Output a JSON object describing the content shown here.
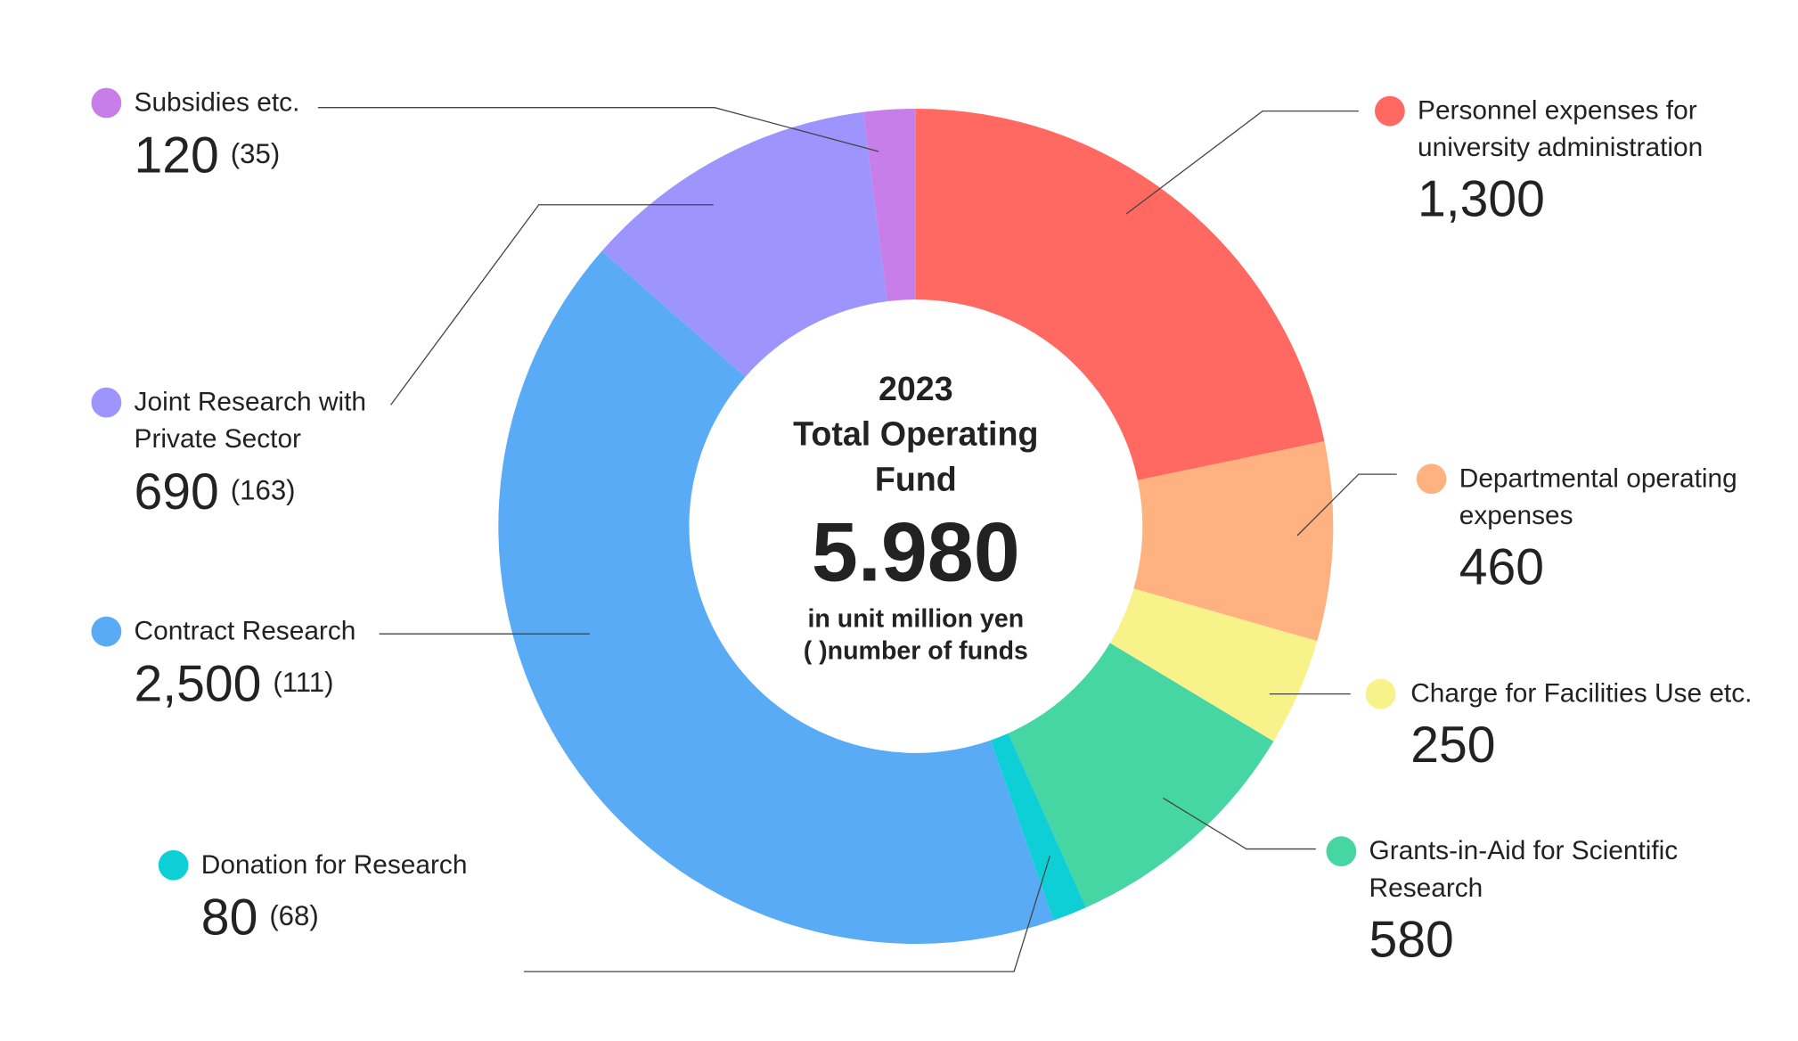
{
  "chart_data": {
    "type": "pie",
    "center_year": "2023",
    "center_title": "Total Operating Fund",
    "center_total": "5.980",
    "center_unit": "in unit million yen",
    "center_note": "( )number of funds",
    "categories": [
      "Personnel expenses for university administration",
      "Departmental operating expenses",
      "Charge for Facilities Use etc.",
      "Grants-in-Aid for Scientific Research",
      "Donation for Research",
      "Contract Research",
      "Joint Research with Private Sector",
      "Subsidies etc."
    ],
    "values": [
      1300,
      460,
      250,
      580,
      80,
      2500,
      690,
      120
    ],
    "value_labels": [
      "1,300",
      "460",
      "250",
      "580",
      "80",
      "2,500",
      "690",
      "120"
    ],
    "counts": [
      null,
      null,
      null,
      null,
      68,
      111,
      163,
      35
    ],
    "count_labels": [
      null,
      null,
      null,
      null,
      "(68)",
      "(111)",
      "(163)",
      "(35)"
    ],
    "colors": [
      "#ff6961",
      "#ffb27f",
      "#f7f28a",
      "#45d6a4",
      "#0fcfd6",
      "#5aabf5",
      "#9e94fd",
      "#c77ee8"
    ]
  }
}
